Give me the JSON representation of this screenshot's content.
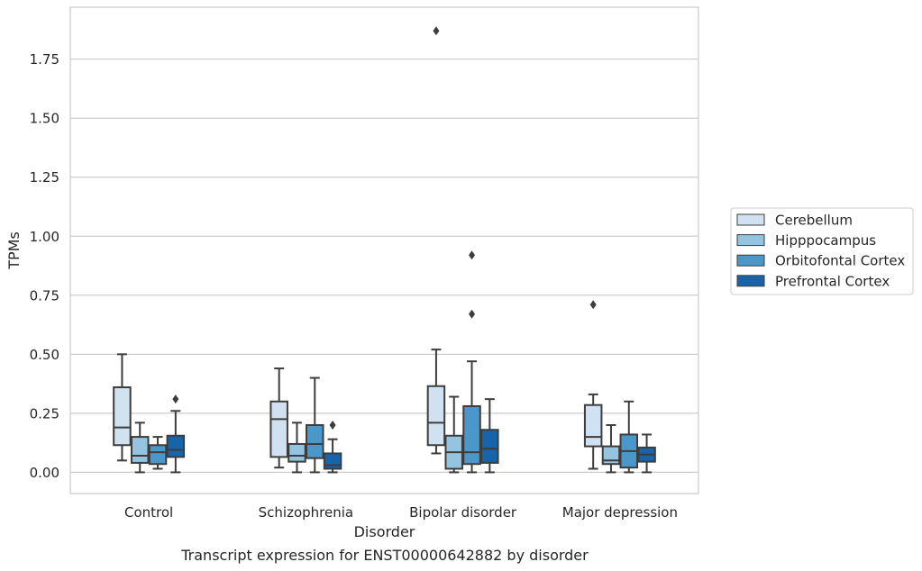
{
  "caption": "Transcript expression for ENST00000642882 by disorder",
  "chart_data": {
    "type": "box",
    "title": "",
    "xlabel": "Disorder",
    "ylabel": "TPMs",
    "categories": [
      "Control",
      "Schizophrenia",
      "Bipolar disorder",
      "Major depression"
    ],
    "yticks": [
      "0.00",
      "0.25",
      "0.50",
      "0.75",
      "1.00",
      "1.25",
      "1.50",
      "1.75"
    ],
    "ylim": [
      -0.09,
      1.97
    ],
    "grid": "horizontal",
    "legend_position": "right",
    "series": [
      {
        "name": "Cerebellum",
        "color": "#d0e1f2",
        "boxes": [
          {
            "whislo": 0.05,
            "q1": 0.115,
            "med": 0.19,
            "q3": 0.36,
            "whishi": 0.5,
            "fliers": []
          },
          {
            "whislo": 0.02,
            "q1": 0.065,
            "med": 0.225,
            "q3": 0.3,
            "whishi": 0.44,
            "fliers": []
          },
          {
            "whislo": 0.08,
            "q1": 0.115,
            "med": 0.21,
            "q3": 0.365,
            "whishi": 0.52,
            "fliers": [
              1.87
            ]
          },
          {
            "whislo": 0.015,
            "q1": 0.11,
            "med": 0.15,
            "q3": 0.285,
            "whishi": 0.33,
            "fliers": [
              0.71
            ]
          }
        ]
      },
      {
        "name": "Hipppocampus",
        "color": "#94c4df",
        "boxes": [
          {
            "whislo": 0.0,
            "q1": 0.04,
            "med": 0.07,
            "q3": 0.15,
            "whishi": 0.21,
            "fliers": []
          },
          {
            "whislo": 0.0,
            "q1": 0.045,
            "med": 0.07,
            "q3": 0.12,
            "whishi": 0.21,
            "fliers": []
          },
          {
            "whislo": 0.0,
            "q1": 0.015,
            "med": 0.085,
            "q3": 0.155,
            "whishi": 0.32,
            "fliers": []
          },
          {
            "whislo": 0.0,
            "q1": 0.035,
            "med": 0.05,
            "q3": 0.11,
            "whishi": 0.2,
            "fliers": []
          }
        ]
      },
      {
        "name": "Orbitofontal Cortex",
        "color": "#4a98c9",
        "boxes": [
          {
            "whislo": 0.015,
            "q1": 0.035,
            "med": 0.085,
            "q3": 0.115,
            "whishi": 0.15,
            "fliers": []
          },
          {
            "whislo": 0.0,
            "q1": 0.06,
            "med": 0.12,
            "q3": 0.2,
            "whishi": 0.4,
            "fliers": []
          },
          {
            "whislo": 0.0,
            "q1": 0.035,
            "med": 0.085,
            "q3": 0.28,
            "whishi": 0.47,
            "fliers": [
              0.67,
              0.92
            ]
          },
          {
            "whislo": 0.0,
            "q1": 0.02,
            "med": 0.09,
            "q3": 0.16,
            "whishi": 0.3,
            "fliers": []
          }
        ]
      },
      {
        "name": "Prefrontal Cortex",
        "color": "#1764ab",
        "boxes": [
          {
            "whislo": 0.0,
            "q1": 0.065,
            "med": 0.095,
            "q3": 0.155,
            "whishi": 0.26,
            "fliers": [
              0.31
            ]
          },
          {
            "whislo": 0.0,
            "q1": 0.015,
            "med": 0.03,
            "q3": 0.08,
            "whishi": 0.14,
            "fliers": [
              0.2
            ]
          },
          {
            "whislo": 0.0,
            "q1": 0.04,
            "med": 0.1,
            "q3": 0.18,
            "whishi": 0.31,
            "fliers": []
          },
          {
            "whislo": 0.0,
            "q1": 0.045,
            "med": 0.075,
            "q3": 0.105,
            "whishi": 0.16,
            "fliers": []
          }
        ]
      }
    ]
  }
}
